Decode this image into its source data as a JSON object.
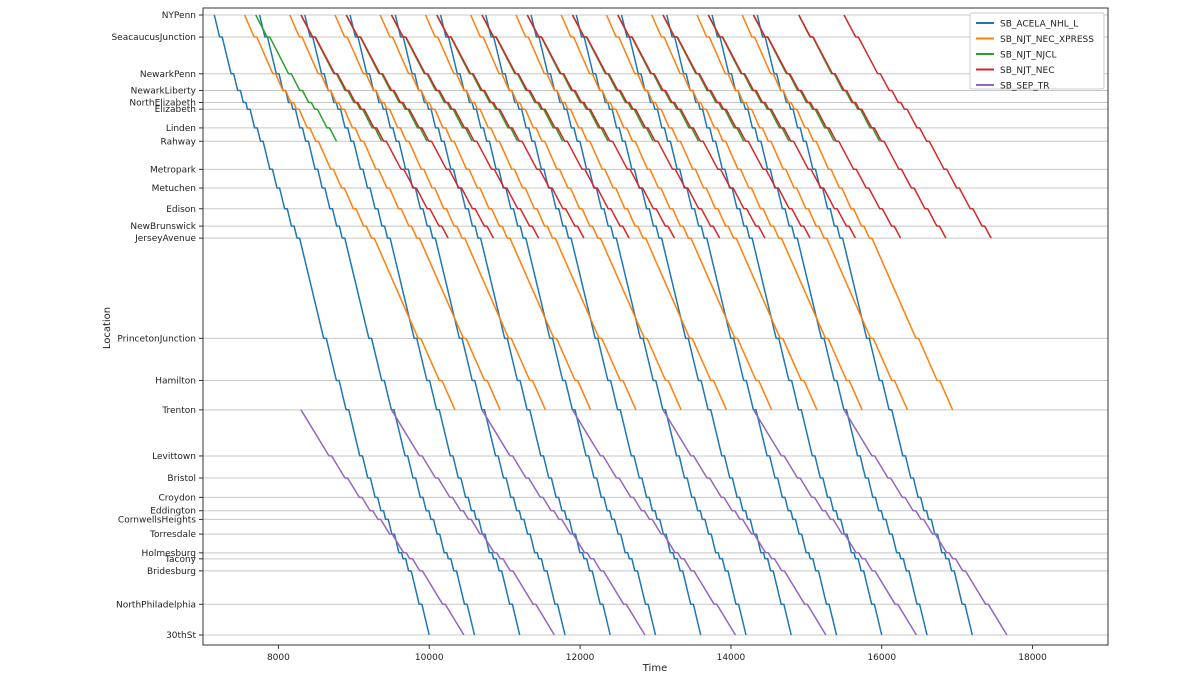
{
  "chart_data": {
    "type": "line",
    "xlabel": "Time",
    "ylabel": "Location",
    "xlim": [
      7000,
      19000
    ],
    "x_ticks": [
      8000,
      10000,
      12000,
      14000,
      16000,
      18000
    ],
    "x_tick_labels": [
      "8000",
      "10000",
      "12000",
      "14000",
      "16000",
      "18000"
    ],
    "grid": "horizontal lines at each station",
    "legend_position": "top-right",
    "stations": [
      {
        "name": "NYPenn",
        "mile": 0
      },
      {
        "name": "SeacaucusJunction",
        "mile": 3.3
      },
      {
        "name": "NewarkPenn",
        "mile": 8.8
      },
      {
        "name": "NewarkLiberty",
        "mile": 11.3
      },
      {
        "name": "NorthElizabeth",
        "mile": 13.1
      },
      {
        "name": "Elizabeth",
        "mile": 14.1
      },
      {
        "name": "Linden",
        "mile": 16.9
      },
      {
        "name": "Rahway",
        "mile": 18.9
      },
      {
        "name": "Metropark",
        "mile": 23.1
      },
      {
        "name": "Metuchen",
        "mile": 25.9
      },
      {
        "name": "Edison",
        "mile": 29.0
      },
      {
        "name": "NewBrunswick",
        "mile": 31.6
      },
      {
        "name": "JerseyAvenue",
        "mile": 33.4
      },
      {
        "name": "PrincetonJunction",
        "mile": 48.4
      },
      {
        "name": "Hamilton",
        "mile": 54.7
      },
      {
        "name": "Trenton",
        "mile": 59.1
      },
      {
        "name": "Levittown",
        "mile": 66.0
      },
      {
        "name": "Bristol",
        "mile": 69.3
      },
      {
        "name": "Croydon",
        "mile": 72.2
      },
      {
        "name": "Eddington",
        "mile": 74.2
      },
      {
        "name": "CornwellsHeights",
        "mile": 75.5
      },
      {
        "name": "Torresdale",
        "mile": 77.7
      },
      {
        "name": "Holmesburg",
        "mile": 80.5
      },
      {
        "name": "Tacony",
        "mile": 81.4
      },
      {
        "name": "Bridesburg",
        "mile": 83.2
      },
      {
        "name": "NorthPhiladelphia",
        "mile": 88.2
      },
      {
        "name": "30thSt",
        "mile": 92.8
      }
    ],
    "series": [
      {
        "name": "SB_ACELA_NHL_L",
        "color": "#1f77b4",
        "from_station": "NYPenn",
        "to_station": "30thSt",
        "start_times": [
          7150,
          7750,
          8350,
          8950,
          9550,
          10150,
          10750,
          11350,
          11950,
          12550,
          13150,
          13750,
          14350
        ],
        "travel_time": 2850
      },
      {
        "name": "SB_NJT_NEC_XPRESS",
        "color": "#ff7f0e",
        "from_station": "NYPenn",
        "to_station": "Trenton",
        "start_times": [
          7550,
          8150,
          8750,
          9350,
          9950,
          10550,
          11150,
          11750,
          12350,
          12950,
          13550,
          14150
        ],
        "travel_time": 2790
      },
      {
        "name": "SB_NJT_NJCL",
        "color": "#2ca02c",
        "from_station": "NYPenn",
        "to_station": "Rahway",
        "start_times": [
          7700,
          8300,
          8900,
          9500,
          10100,
          10700,
          11300,
          11900,
          12500,
          13100,
          13700,
          14300,
          14900
        ],
        "travel_time": 1070
      },
      {
        "name": "SB_NJT_NEC",
        "color": "#d62728",
        "from_station": "NYPenn",
        "to_station": "JerseyAvenue",
        "start_times": [
          8300,
          8900,
          9500,
          10100,
          10700,
          11300,
          11900,
          12500,
          13100,
          13700,
          14300,
          14900,
          15500
        ],
        "travel_time": 1950
      },
      {
        "name": "SB_SEP_TR",
        "color": "#9467bd",
        "from_station": "Trenton",
        "to_station": "30thSt",
        "start_times": [
          8300,
          9500,
          10700,
          11900,
          13100,
          14300,
          15500
        ],
        "travel_time": 2160
      }
    ]
  }
}
